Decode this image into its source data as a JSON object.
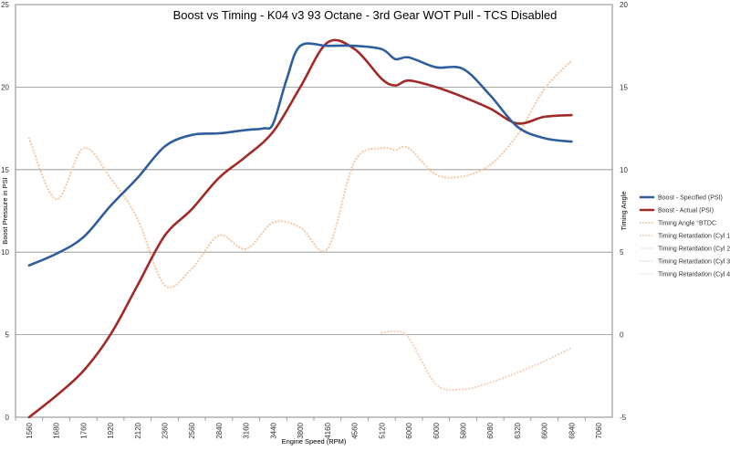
{
  "chart_data": {
    "type": "line",
    "title": "Boost vs Timing - K04 v3 93 Octane - 3rd Gear WOT Pull - TCS Disabled",
    "xlabel": "Engine Speed (RPM)",
    "ylabel": "Boost Pressure in PSI",
    "y2label": "Timing Angle",
    "categories": [
      "1560",
      "1680",
      "1760",
      "1920",
      "2120",
      "2360",
      "2560",
      "2840",
      "3160",
      "3440",
      "3800",
      "4160",
      "4560",
      "5120",
      "6000",
      "6000",
      "5800",
      "6080",
      "6320",
      "6600",
      "6840",
      "7060"
    ],
    "ylim": [
      0,
      25
    ],
    "yticks": [
      "0",
      "5",
      "10",
      "15",
      "20",
      "25"
    ],
    "y2lim": [
      -5,
      20
    ],
    "y2ticks": [
      "-5",
      "0",
      "5",
      "10",
      "15",
      "20"
    ],
    "grid": true,
    "legend_position": "right",
    "series": [
      {
        "name": "Boost - Specified (PSI)",
        "axis": "left",
        "color": "#2f5e9e",
        "style": "solid",
        "x": [
          1560,
          1680,
          1760,
          1920,
          2120,
          2360,
          2560,
          2840,
          3160,
          3340,
          3440,
          3620,
          3800,
          4160,
          4560,
          5120,
          5400,
          5600,
          5900,
          6150,
          6400,
          6600,
          6840,
          7060
        ],
        "y": [
          9.2,
          9.9,
          10.9,
          12.8,
          14.5,
          16.4,
          17.1,
          17.2,
          17.4,
          17.5,
          17.8,
          20.5,
          22.5,
          22.5,
          22.5,
          22.3,
          21.7,
          21.8,
          21.2,
          21.1,
          19.5,
          17.6,
          16.9,
          16.7
        ]
      },
      {
        "name": "Boost - Actual (PSI)",
        "axis": "left",
        "color": "#a12a28",
        "style": "solid",
        "x": [
          1560,
          1680,
          1760,
          1920,
          2120,
          2360,
          2560,
          2840,
          3160,
          3440,
          3800,
          4160,
          4560,
          5120,
          5400,
          5600,
          5900,
          6150,
          6400,
          6600,
          6840,
          7060
        ],
        "y": [
          0.0,
          1.3,
          2.8,
          5.0,
          8.0,
          11.0,
          12.6,
          14.5,
          15.8,
          17.3,
          20.0,
          22.7,
          22.3,
          20.5,
          20.1,
          20.4,
          20.0,
          19.4,
          18.7,
          17.8,
          18.2,
          18.3
        ]
      },
      {
        "name": "Timing Angle °BTDC",
        "axis": "right",
        "color": "#f6c9a3",
        "style": "dotted",
        "x": [
          1560,
          1680,
          1760,
          1920,
          2120,
          2360,
          2560,
          2840,
          3160,
          3440,
          3800,
          4160,
          4560,
          5120,
          5400,
          5600,
          5900,
          6150,
          6400,
          6600,
          6840,
          7060
        ],
        "y": [
          11.9,
          8.2,
          11.3,
          9.5,
          7.0,
          3.0,
          4.0,
          6.0,
          5.2,
          6.8,
          6.5,
          5.2,
          10.5,
          11.3,
          11.2,
          11.3,
          9.7,
          9.6,
          10.3,
          12.1,
          14.9,
          16.6
        ]
      },
      {
        "name": "Timing Retardation (Cyl 1)",
        "axis": "right",
        "color": "#f5d2bd",
        "style": "dotted",
        "x": [
          5120,
          5400,
          5600,
          5900,
          6150,
          6400,
          6600,
          6840,
          7060
        ],
        "y": [
          0.1,
          0.2,
          -0.2,
          -3.0,
          -3.3,
          -2.9,
          -2.3,
          -1.6,
          -0.8
        ]
      },
      {
        "name": "Timing Retardation (Cyl 2)",
        "axis": "right",
        "color": "#e3e9ea",
        "style": "dotted",
        "x": [],
        "y": []
      },
      {
        "name": "Timing Retardation (Cyl 3)",
        "axis": "right",
        "color": "#e8e3ef",
        "style": "dotted",
        "x": [],
        "y": []
      },
      {
        "name": "Timing Retardation (Cyl 4)",
        "axis": "right",
        "color": "#e6eee2",
        "style": "dotted",
        "x": [],
        "y": []
      }
    ]
  }
}
